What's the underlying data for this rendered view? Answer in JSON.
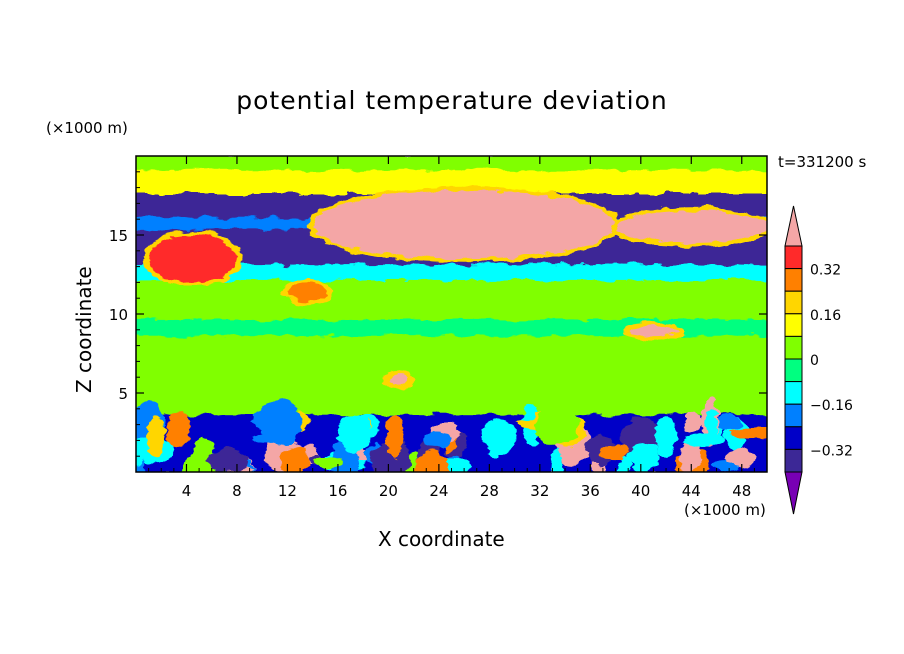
{
  "chart_data": {
    "type": "heatmap",
    "title": "potential temperature deviation",
    "xlabel": "X coordinate",
    "ylabel": "Z coordinate",
    "x_unit": "(×1000 m)",
    "y_unit": "(×1000 m)",
    "time_label": "t=331200 s",
    "xlim": [
      0,
      50
    ],
    "ylim": [
      0,
      20
    ],
    "x_ticks": [
      4,
      8,
      12,
      16,
      20,
      24,
      28,
      32,
      36,
      40,
      44,
      48
    ],
    "y_ticks": [
      5,
      10,
      15
    ],
    "colorbar": {
      "levels": [
        -0.4,
        -0.32,
        -0.24,
        -0.16,
        -0.08,
        0,
        0.08,
        0.16,
        0.24,
        0.32,
        0.4
      ],
      "labeled_ticks": [
        0.32,
        0.16,
        0,
        -0.16,
        -0.32
      ],
      "colors": [
        "#f4a6a6",
        "#ff2a2a",
        "#ff8000",
        "#ffd600",
        "#ffff00",
        "#80ff00",
        "#00ff80",
        "#00ffff",
        "#0080ff",
        "#0000c8",
        "#3c2896",
        "#7800b4"
      ],
      "extend": "both"
    },
    "fields": {
      "bands": [
        {
          "z": [
            19.0,
            20.0
          ],
          "value": 0.05
        },
        {
          "z": [
            17.5,
            19.0
          ],
          "value": 0.1
        },
        {
          "z": [
            16.0,
            17.5
          ],
          "value": -0.36
        },
        {
          "z": [
            15.2,
            16.0
          ],
          "value": -0.2
        },
        {
          "z": [
            13.0,
            15.2
          ],
          "value": -0.34
        },
        {
          "z": [
            12.0,
            13.0
          ],
          "value": -0.1
        },
        {
          "z": [
            9.5,
            12.0
          ],
          "value": 0.04
        },
        {
          "z": [
            8.5,
            9.5
          ],
          "value": -0.04
        },
        {
          "z": [
            3.5,
            8.5
          ],
          "value": 0.04
        },
        {
          "z": [
            0,
            3.5
          ],
          "value": -0.3
        }
      ],
      "warm_plumes": [
        {
          "x": [
            14,
            38
          ],
          "z": [
            13.5,
            17.8
          ],
          "value": 0.42
        },
        {
          "x": [
            1,
            8
          ],
          "z": [
            12.0,
            15.0
          ],
          "value": 0.36
        },
        {
          "x": [
            38,
            50
          ],
          "z": [
            14.5,
            16.5
          ],
          "value": 0.42
        },
        {
          "x": [
            39,
            43
          ],
          "z": [
            8.6,
            9.2
          ],
          "value": 0.42
        },
        {
          "x": [
            20,
            21.5
          ],
          "z": [
            5.5,
            6.2
          ],
          "value": 0.42
        },
        {
          "x": [
            12,
            15
          ],
          "z": [
            10.8,
            12.0
          ],
          "value": 0.3
        }
      ]
    }
  }
}
